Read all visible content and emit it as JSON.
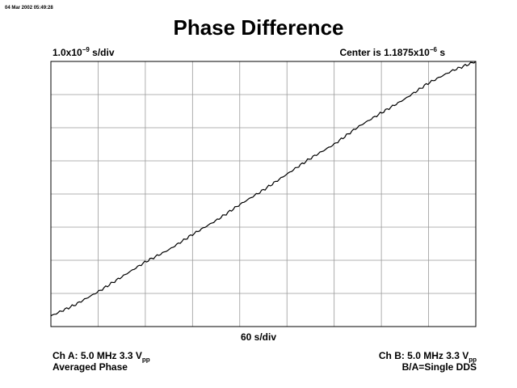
{
  "header": {
    "timestamp": "04 Mar 2002 05:49:28",
    "title": "Phase Difference"
  },
  "scale": {
    "vertical_prefix": "1.0x10",
    "vertical_exp": "−9",
    "vertical_suffix": " s/div",
    "center_prefix": "Center is 1.1875x10",
    "center_exp": "−6",
    "center_suffix": " s"
  },
  "footer": {
    "x_scale": "60 s/div",
    "cha_line1_prefix": "Ch A: 5.0 MHz 3.3 V",
    "cha_line1_sub": "pp",
    "cha_line2": "Averaged Phase",
    "chb_line1_prefix": "Ch B: 5.0 MHz 3.3 V",
    "chb_line1_sub": "pp",
    "chb_line2": "B/A=Single DDS"
  },
  "chart_data": {
    "type": "line",
    "title": "Phase Difference",
    "xlabel": "60 s/div",
    "ylabel": "1.0x10⁻⁹ s/div",
    "grid": true,
    "x_divisions": 9,
    "y_divisions": 8,
    "xlim": [
      0,
      9
    ],
    "ylim": [
      0,
      8
    ],
    "line_color": "#000000",
    "grid_color": "#9a9a9a",
    "series": [
      {
        "x": [
          0,
          0.5,
          1,
          1.5,
          2,
          2.5,
          3,
          3.5,
          4,
          4.5,
          5,
          5.5,
          6,
          6.5,
          7,
          7.5,
          8,
          8.5,
          9
        ],
        "y": [
          0.32,
          0.65,
          1.05,
          1.5,
          1.95,
          2.32,
          2.78,
          3.2,
          3.68,
          4.12,
          4.6,
          5.08,
          5.5,
          6.02,
          6.45,
          6.87,
          7.35,
          7.72,
          8.0
        ]
      }
    ]
  }
}
